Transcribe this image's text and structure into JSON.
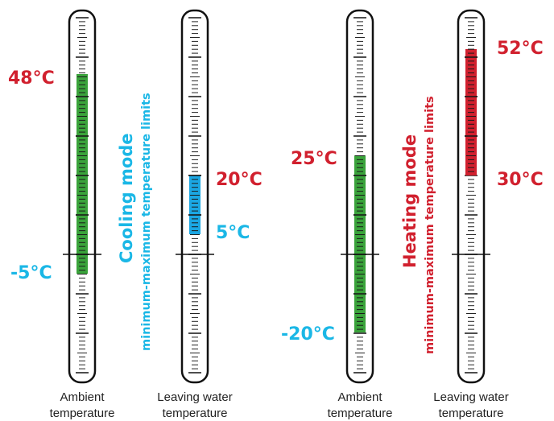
{
  "thermometers": [
    {
      "key": "cool-ambient",
      "caption_line1": "Ambient",
      "caption_line2": "temperature",
      "range": {
        "min": -5,
        "max": 48
      },
      "bar_color": "#3aa33b",
      "max_label": "48°C",
      "min_label": "-5°C",
      "max_label_color": "#d1202e",
      "min_label_color": "#1ab7e6"
    },
    {
      "key": "cool-water",
      "caption_line1": "Leaving water",
      "caption_line2": "temperature",
      "range": {
        "min": 5,
        "max": 20
      },
      "bar_color": "#1ba7e3",
      "max_label": "20°C",
      "min_label": "5°C",
      "max_label_color": "#d1202e",
      "min_label_color": "#1ab7e6"
    },
    {
      "key": "heat-ambient",
      "caption_line1": "Ambient",
      "caption_line2": "temperature",
      "range": {
        "min": -20,
        "max": 25
      },
      "bar_color": "#3aa33b",
      "max_label": "25°C",
      "min_label": "-20°C",
      "max_label_color": "#d1202e",
      "min_label_color": "#1ab7e6"
    },
    {
      "key": "heat-water",
      "caption_line1": "Leaving water",
      "caption_line2": "temperature",
      "range": {
        "min": 30,
        "max": 52
      },
      "bar_color": "#d1202e",
      "max_label": "52°C",
      "min_label": "30°C",
      "max_label_color": "#d1202e",
      "min_label_color": "#d1202e"
    }
  ],
  "cooling": {
    "title": "Cooling mode",
    "subtitle": "minimum-maximum temperature limits",
    "color": "#1ab7e6"
  },
  "heating": {
    "title": "Heating mode",
    "subtitle": "minimum-maximum temperature limits",
    "color": "#d1202e"
  }
}
